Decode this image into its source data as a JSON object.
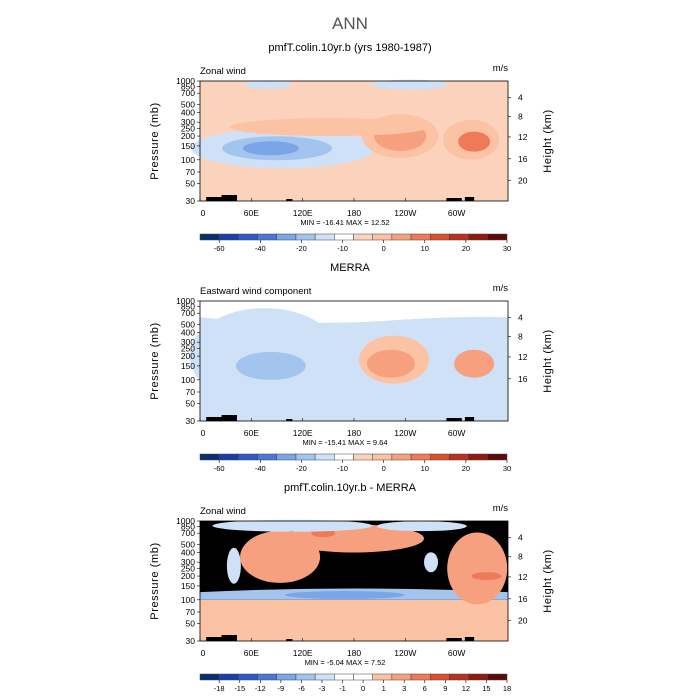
{
  "page": {
    "title": "ANN"
  },
  "colors": {
    "panel_fill": "#fbd3bd",
    "light_blue": "#cfe1f7",
    "mid_blue": "#a4c4f0",
    "blue": "#7aa5e6",
    "dark_blue": "#4a76d4",
    "light_red": "#fcc2a4",
    "mid_red": "#f6a080",
    "red": "#ee7a58",
    "dark_red": "#dc4f2e",
    "masked": "#000000"
  },
  "chart_data": [
    {
      "type": "heatmap",
      "title": "pmfT.colin.10yr.b (yrs 1980-1987)",
      "variable_label": "Zonal wind",
      "units": "m/s",
      "ylabel": "Pressure (mb)",
      "y2label": "Height (km)",
      "y_ticks": [
        "30",
        "50",
        "70",
        "100",
        "150",
        "200",
        "250",
        "300",
        "400",
        "500",
        "700",
        "850",
        "1000"
      ],
      "y2_ticks": [
        "20",
        "16",
        "12",
        "8",
        "4"
      ],
      "x_ticks": [
        "0",
        "60E",
        "120E",
        "180",
        "120W",
        "60W"
      ],
      "stats": "MIN = -16.41   MAX =  12.52",
      "min": -16.41,
      "max": 12.52,
      "colorbar": {
        "levels": [
          "-60",
          "-40",
          "-20",
          "-10",
          "0",
          "10",
          "20",
          "30"
        ]
      }
    },
    {
      "type": "heatmap",
      "title": "MERRA",
      "variable_label": "Eastward wind component",
      "units": "m/s",
      "ylabel": "Pressure (mb)",
      "y2label": "Height (km)",
      "y_ticks": [
        "30",
        "50",
        "70",
        "100",
        "150",
        "200",
        "250",
        "300",
        "400",
        "500",
        "700",
        "850",
        "1000"
      ],
      "y2_ticks": [
        "16",
        "12",
        "8",
        "4"
      ],
      "x_ticks": [
        "0",
        "60E",
        "120E",
        "180",
        "120W",
        "60W"
      ],
      "stats": "MIN = -15.41   MAX =   9.64",
      "min": -15.41,
      "max": 9.64,
      "colorbar": {
        "levels": [
          "-60",
          "-40",
          "-20",
          "-10",
          "0",
          "10",
          "20",
          "30"
        ]
      }
    },
    {
      "type": "heatmap",
      "title": "pmfT.colin.10yr.b - MERRA",
      "variable_label": "Zonal wind",
      "units": "m/s",
      "ylabel": "Pressure (mb)",
      "y2label": "Height (km)",
      "y_ticks": [
        "30",
        "50",
        "70",
        "100",
        "150",
        "200",
        "250",
        "300",
        "400",
        "500",
        "700",
        "850",
        "1000"
      ],
      "y2_ticks": [
        "20",
        "16",
        "12",
        "8",
        "4"
      ],
      "x_ticks": [
        "0",
        "60E",
        "120E",
        "180",
        "120W",
        "60W"
      ],
      "stats": "MIN = -5.04   MAX =   7.52",
      "min": -5.04,
      "max": 7.52,
      "colorbar": {
        "levels": [
          "-18",
          "-15",
          "-12",
          "-9",
          "-6",
          "-3",
          "-1",
          "0",
          "1",
          "3",
          "6",
          "9",
          "12",
          "15",
          "18"
        ]
      }
    }
  ]
}
